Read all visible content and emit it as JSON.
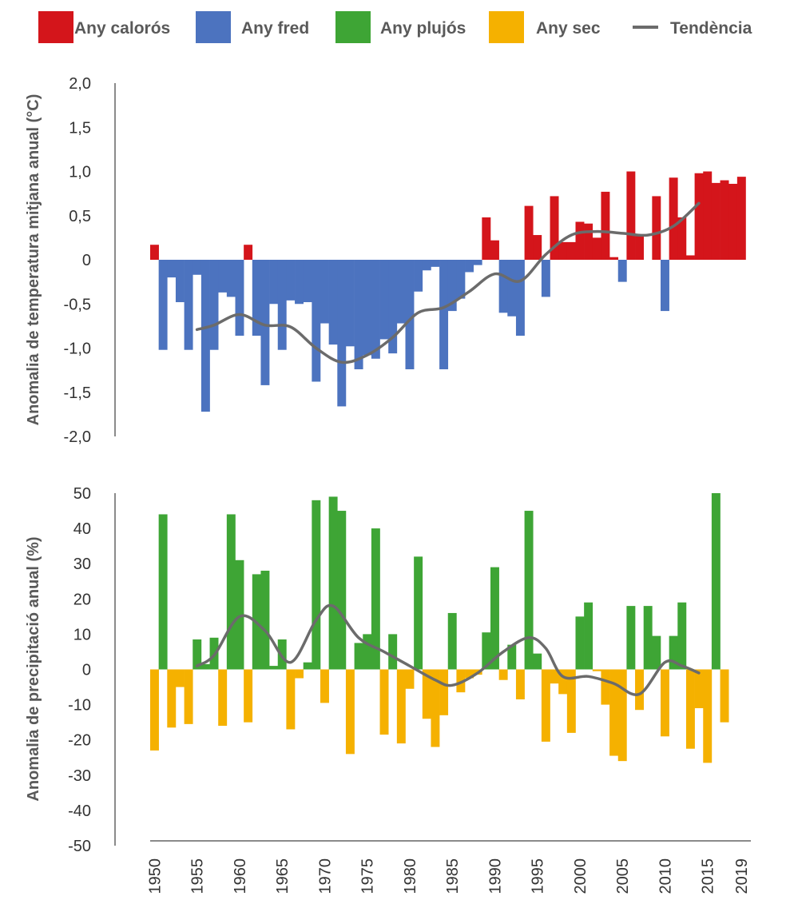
{
  "legend": {
    "hot_label": "Any calorós",
    "cold_label": "Any fred",
    "wet_label": "Any plujós",
    "dry_label": "Any sec",
    "trend_label": "Tendència"
  },
  "colors": {
    "hot": "#d4151b",
    "cold": "#4c73bf",
    "wet": "#3ea535",
    "dry": "#f5b100",
    "trend": "#6b6b6b",
    "axis": "#8a8a8a"
  },
  "chart_data": [
    {
      "type": "bar",
      "ylabel": "Anomalia de temperatura mitjana anual (°C)",
      "ylim": [
        -2.0,
        2.0
      ],
      "y_ticks": [
        "2,0",
        "1,5",
        "1,0",
        "0,5",
        "0",
        "-0,5",
        "-1,0",
        "-1,5",
        "-2,0"
      ],
      "years": [
        1950,
        1951,
        1952,
        1953,
        1954,
        1955,
        1956,
        1957,
        1958,
        1959,
        1960,
        1961,
        1962,
        1963,
        1964,
        1965,
        1966,
        1967,
        1968,
        1969,
        1970,
        1971,
        1972,
        1973,
        1974,
        1975,
        1976,
        1977,
        1978,
        1979,
        1980,
        1981,
        1982,
        1983,
        1984,
        1985,
        1986,
        1987,
        1988,
        1989,
        1990,
        1991,
        1992,
        1993,
        1994,
        1995,
        1996,
        1997,
        1998,
        1999,
        2000,
        2001,
        2002,
        2003,
        2004,
        2005,
        2006,
        2007,
        2008,
        2009,
        2010,
        2011,
        2012,
        2013,
        2014,
        2015,
        2016,
        2017,
        2018,
        2019
      ],
      "values": [
        0.17,
        -1.02,
        -0.2,
        -0.48,
        -1.02,
        -0.17,
        -1.72,
        -1.02,
        -0.37,
        -0.42,
        -0.86,
        0.17,
        -0.86,
        -1.42,
        -0.5,
        -1.02,
        -0.46,
        -0.5,
        -0.48,
        -1.38,
        -0.72,
        -0.96,
        -1.66,
        -0.98,
        -1.24,
        -1.08,
        -1.12,
        -0.9,
        -1.06,
        -0.72,
        -1.24,
        -0.36,
        -0.12,
        -0.08,
        -1.24,
        -0.58,
        -0.44,
        -0.14,
        -0.06,
        0.48,
        0.22,
        -0.6,
        -0.64,
        -0.86,
        0.61,
        0.28,
        -0.42,
        0.72,
        0.2,
        0.2,
        0.43,
        0.41,
        0.25,
        0.77,
        0.03,
        -0.25,
        1.0,
        0.27,
        0.0,
        0.72,
        -0.58,
        0.93,
        0.48,
        0.05,
        0.98,
        1.0,
        0.87,
        0.9,
        0.86,
        0.94
      ],
      "trend": {
        "x": [
          1955,
          1957,
          1960,
          1963,
          1966,
          1969,
          1972,
          1975,
          1978,
          1981,
          1984,
          1987,
          1990,
          1993,
          1996,
          1999,
          2002,
          2005,
          2008,
          2011,
          2014
        ],
        "y": [
          -0.79,
          -0.74,
          -0.62,
          -0.74,
          -0.76,
          -1.0,
          -1.16,
          -1.08,
          -0.88,
          -0.6,
          -0.54,
          -0.36,
          -0.16,
          -0.24,
          0.06,
          0.28,
          0.32,
          0.3,
          0.28,
          0.38,
          0.64
        ]
      }
    },
    {
      "type": "bar",
      "ylabel": "Anomalia de precipitació anual (%)",
      "ylim": [
        -50,
        50
      ],
      "y_ticks": [
        "50",
        "40",
        "30",
        "20",
        "10",
        "0",
        "-10",
        "-20",
        "-30",
        "-40",
        "-50"
      ],
      "x_ticks": [
        "1950",
        "1955",
        "1960",
        "1965",
        "1970",
        "1975",
        "1980",
        "1985",
        "1990",
        "1995",
        "2000",
        "2005",
        "2010",
        "2015",
        "2019"
      ],
      "years": [
        1950,
        1951,
        1952,
        1953,
        1954,
        1955,
        1956,
        1957,
        1958,
        1959,
        1960,
        1961,
        1962,
        1963,
        1964,
        1965,
        1966,
        1967,
        1968,
        1969,
        1970,
        1971,
        1972,
        1973,
        1974,
        1975,
        1976,
        1977,
        1978,
        1979,
        1980,
        1981,
        1982,
        1983,
        1984,
        1985,
        1986,
        1987,
        1988,
        1989,
        1990,
        1991,
        1992,
        1993,
        1994,
        1995,
        1996,
        1997,
        1998,
        1999,
        2000,
        2001,
        2002,
        2003,
        2004,
        2005,
        2006,
        2007,
        2008,
        2009,
        2010,
        2011,
        2012,
        2013,
        2014,
        2015,
        2016,
        2017,
        2018,
        2019
      ],
      "values": [
        -23,
        44,
        -16.5,
        -5,
        -15.5,
        8.5,
        1.5,
        9,
        -16,
        44,
        31,
        -15,
        27,
        28,
        1,
        8.5,
        -17,
        -2.5,
        2,
        48,
        -9.5,
        49,
        45,
        -24,
        7.5,
        10,
        40,
        -18.5,
        10,
        -21,
        -5.5,
        32,
        -14,
        -22,
        -13,
        16,
        -6.5,
        -2.5,
        -1.5,
        10.5,
        29,
        -3,
        7,
        -8.5,
        45,
        4.5,
        -20.5,
        -4,
        -7,
        -18,
        15,
        19,
        -0.5,
        -10,
        -24.5,
        -26,
        18,
        -11.5,
        18,
        9.5,
        -19,
        9.5,
        19,
        -22.5,
        -11,
        -26.5,
        50,
        -15,
        0,
        0
      ],
      "trend": {
        "x": [
          1955,
          1957,
          1960,
          1963,
          1966,
          1969,
          1971,
          1974,
          1977,
          1980,
          1983,
          1985,
          1988,
          1991,
          1994,
          1996,
          1998,
          2001,
          2004,
          2007,
          2010,
          2012,
          2014
        ],
        "y": [
          1,
          4,
          15,
          11,
          2,
          14,
          18,
          9,
          5,
          1,
          -3,
          -4.5,
          -1,
          5,
          9,
          6,
          -2,
          -2,
          -4,
          -7,
          2,
          1,
          -1
        ]
      }
    }
  ]
}
